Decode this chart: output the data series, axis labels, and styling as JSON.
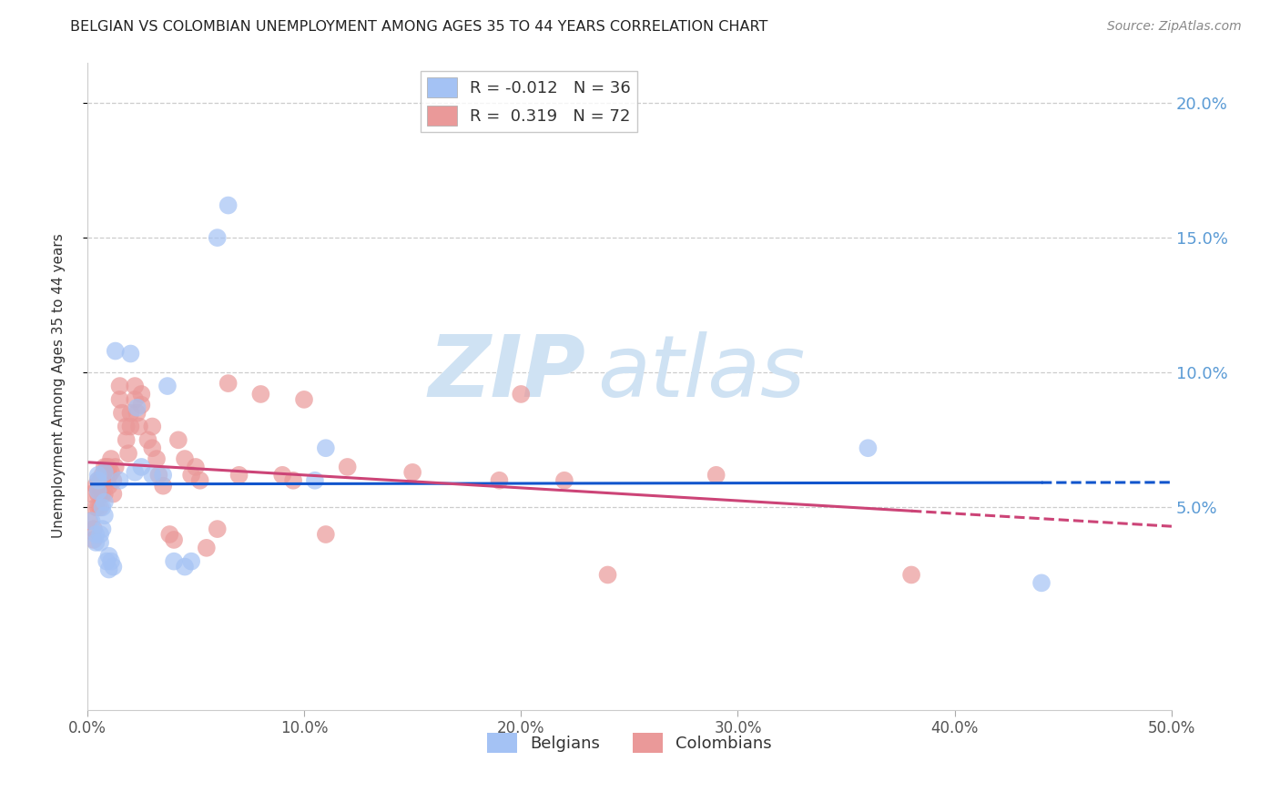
{
  "title": "BELGIAN VS COLOMBIAN UNEMPLOYMENT AMONG AGES 35 TO 44 YEARS CORRELATION CHART",
  "source": "Source: ZipAtlas.com",
  "ylabel": "Unemployment Among Ages 35 to 44 years",
  "xlim": [
    0.0,
    0.5
  ],
  "ylim": [
    -0.025,
    0.215
  ],
  "yticks": [
    0.05,
    0.1,
    0.15,
    0.2
  ],
  "ytick_labels": [
    "5.0%",
    "10.0%",
    "15.0%",
    "20.0%"
  ],
  "xticks": [
    0.0,
    0.1,
    0.2,
    0.3,
    0.4,
    0.5
  ],
  "xtick_labels": [
    "0.0%",
    "10.0%",
    "20.0%",
    "30.0%",
    "40.0%",
    "50.0%"
  ],
  "belgian_color": "#a4c2f4",
  "colombian_color": "#ea9999",
  "belgian_line_color": "#1155cc",
  "colombian_line_color": "#cc4477",
  "belgian_R": -0.012,
  "belgian_N": 36,
  "colombian_R": 0.319,
  "colombian_N": 72,
  "belgian_x": [
    0.002,
    0.004,
    0.004,
    0.005,
    0.005,
    0.005,
    0.006,
    0.006,
    0.007,
    0.007,
    0.008,
    0.008,
    0.008,
    0.009,
    0.01,
    0.01,
    0.011,
    0.012,
    0.013,
    0.015,
    0.02,
    0.022,
    0.023,
    0.025,
    0.03,
    0.035,
    0.037,
    0.04,
    0.045,
    0.048,
    0.06,
    0.065,
    0.105,
    0.11,
    0.36,
    0.44
  ],
  "belgian_y": [
    0.045,
    0.04,
    0.037,
    0.056,
    0.06,
    0.062,
    0.04,
    0.037,
    0.05,
    0.042,
    0.052,
    0.047,
    0.063,
    0.03,
    0.032,
    0.027,
    0.03,
    0.028,
    0.108,
    0.06,
    0.107,
    0.063,
    0.087,
    0.065,
    0.062,
    0.062,
    0.095,
    0.03,
    0.028,
    0.03,
    0.15,
    0.162,
    0.06,
    0.072,
    0.072,
    0.022
  ],
  "colombian_x": [
    0.001,
    0.002,
    0.003,
    0.003,
    0.004,
    0.004,
    0.005,
    0.005,
    0.005,
    0.006,
    0.006,
    0.006,
    0.007,
    0.007,
    0.007,
    0.008,
    0.008,
    0.008,
    0.009,
    0.009,
    0.01,
    0.01,
    0.01,
    0.011,
    0.011,
    0.012,
    0.012,
    0.013,
    0.015,
    0.015,
    0.016,
    0.018,
    0.018,
    0.019,
    0.02,
    0.02,
    0.022,
    0.022,
    0.023,
    0.024,
    0.025,
    0.025,
    0.028,
    0.03,
    0.03,
    0.032,
    0.033,
    0.035,
    0.038,
    0.04,
    0.042,
    0.045,
    0.048,
    0.05,
    0.052,
    0.055,
    0.06,
    0.065,
    0.07,
    0.08,
    0.09,
    0.095,
    0.1,
    0.11,
    0.12,
    0.15,
    0.19,
    0.2,
    0.22,
    0.24,
    0.29,
    0.38
  ],
  "colombian_y": [
    0.045,
    0.055,
    0.042,
    0.038,
    0.058,
    0.05,
    0.06,
    0.055,
    0.05,
    0.06,
    0.055,
    0.05,
    0.062,
    0.06,
    0.055,
    0.065,
    0.06,
    0.055,
    0.065,
    0.06,
    0.065,
    0.062,
    0.058,
    0.068,
    0.063,
    0.06,
    0.055,
    0.065,
    0.095,
    0.09,
    0.085,
    0.08,
    0.075,
    0.07,
    0.085,
    0.08,
    0.095,
    0.09,
    0.085,
    0.08,
    0.092,
    0.088,
    0.075,
    0.08,
    0.072,
    0.068,
    0.062,
    0.058,
    0.04,
    0.038,
    0.075,
    0.068,
    0.062,
    0.065,
    0.06,
    0.035,
    0.042,
    0.096,
    0.062,
    0.092,
    0.062,
    0.06,
    0.09,
    0.04,
    0.065,
    0.063,
    0.06,
    0.092,
    0.06,
    0.025,
    0.062,
    0.025
  ],
  "watermark_zip": "ZIP",
  "watermark_atlas": "atlas",
  "watermark_color": "#cfe2f3",
  "background_color": "#ffffff",
  "grid_color": "#cccccc"
}
